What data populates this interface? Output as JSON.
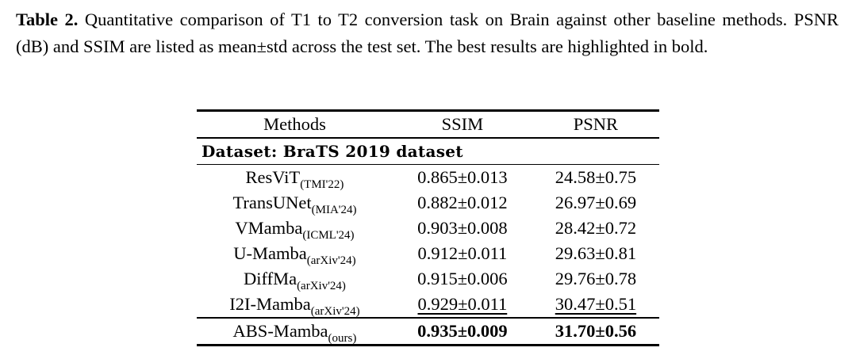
{
  "caption": {
    "label": "Table 2.",
    "text": "Quantitative comparison of T1 to T2 conversion task on Brain against other baseline methods. PSNR (dB) and SSIM are listed as mean±std across the test set. The best results are highlighted in bold."
  },
  "table": {
    "header": [
      "Methods",
      "SSIM",
      "PSNR"
    ],
    "section": "Dataset: BraTS 2019 dataset",
    "rows": [
      {
        "method": "ResViT",
        "venue": "(TMI'22)",
        "ssim": "0.865±0.013",
        "psnr": "24.58±0.75"
      },
      {
        "method": "TransUNet",
        "venue": "(MIA'24)",
        "ssim": "0.882±0.012",
        "psnr": "26.97±0.69"
      },
      {
        "method": "VMamba",
        "venue": "(ICML'24)",
        "ssim": "0.903±0.008",
        "psnr": "28.42±0.72"
      },
      {
        "method": "U-Mamba",
        "venue": "(arXiv'24)",
        "ssim": "0.912±0.011",
        "psnr": "29.63±0.81"
      },
      {
        "method": "DiffMa",
        "venue": "(arXiv'24)",
        "ssim": "0.915±0.006",
        "psnr": "29.76±0.78"
      },
      {
        "method": "I2I-Mamba",
        "venue": "(arXiv'24)",
        "ssim": "0.929±0.011",
        "psnr": "30.47±0.51"
      },
      {
        "method": "ABS-Mamba",
        "venue": "(ours)",
        "ssim": "0.935±0.009",
        "psnr": "31.70±0.56"
      }
    ]
  }
}
